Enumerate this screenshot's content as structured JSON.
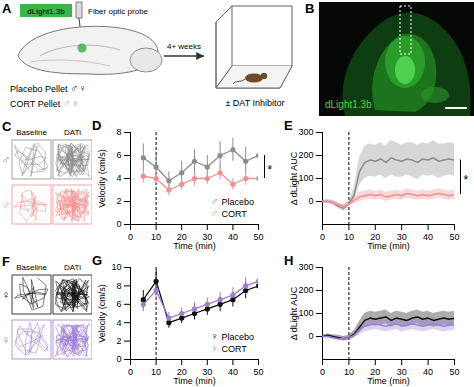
{
  "schematic": {
    "panel": "A",
    "sensor": "dLight1.3b",
    "probe": "Fiber optic probe",
    "groups": [
      {
        "text": "Placebo Pellet",
        "symbols": [
          {
            "symbol": "♂",
            "color": "#111111"
          },
          {
            "symbol": "♀",
            "color": "#111111"
          }
        ]
      },
      {
        "text": "CORT Pellet",
        "symbols": [
          {
            "symbol": "♂",
            "color": "#f08f8f"
          },
          {
            "symbol": "♀",
            "color": "#9c7fd4"
          }
        ]
      }
    ],
    "interval": "4+ weeks",
    "treatment": "± DAT Inhibitor"
  },
  "histology": {
    "panel": "B",
    "label": "dLight1.3b"
  },
  "tracking": [
    {
      "panel": "C",
      "columns": [
        "Baseline",
        "DATi"
      ],
      "rows": [
        {
          "symbol": "♂",
          "color": "#8c8c8c"
        },
        {
          "symbol": "♂",
          "color": "#f08f8f"
        }
      ]
    },
    {
      "panel": "F",
      "columns": [
        "Baseline",
        "DATi"
      ],
      "rows": [
        {
          "symbol": "♀",
          "color": "#111111"
        },
        {
          "symbol": "♀",
          "color": "#9c7fd4"
        }
      ]
    }
  ],
  "chart_data": [
    {
      "panel": "D",
      "type": "line",
      "marker": "circle",
      "x_label": "Time (min)",
      "y_label": "Velocity (cm/s)",
      "x": [
        5,
        10,
        15,
        20,
        25,
        30,
        35,
        40,
        45,
        50
      ],
      "xlim": [
        0,
        50
      ],
      "xticks": [
        0,
        10,
        20,
        30,
        40,
        50
      ],
      "ylim": [
        0,
        8
      ],
      "yticks": [
        0,
        2,
        4,
        6,
        8
      ],
      "event_x": 10,
      "legend": "bottom-right",
      "legend_symbol": "♂",
      "significance": "*",
      "series": [
        {
          "name": "Placebo",
          "color": "#8c8c8c",
          "values": [
            5.8,
            5.0,
            3.8,
            4.5,
            5.5,
            5.0,
            6.0,
            6.5,
            5.5,
            6.0
          ],
          "error": [
            1.2,
            1.0,
            0.8,
            1.0,
            1.0,
            1.0,
            1.2,
            1.0,
            1.2,
            1.0
          ]
        },
        {
          "name": "CORT",
          "color": "#f08f8f",
          "values": [
            4.2,
            4.0,
            3.0,
            3.5,
            4.0,
            4.0,
            4.5,
            3.5,
            4.0,
            4.0
          ],
          "error": [
            0.6,
            0.5,
            0.5,
            0.5,
            0.6,
            0.5,
            0.6,
            0.5,
            0.6,
            0.5
          ]
        }
      ]
    },
    {
      "panel": "E",
      "type": "line",
      "marker": "none",
      "x_label": "Time (min)",
      "y_label": "Δ dLight AUC",
      "x": [
        0,
        2,
        4,
        6,
        8,
        10,
        12,
        14,
        16,
        18,
        20,
        22,
        24,
        26,
        28,
        30,
        32,
        34,
        36,
        38,
        40,
        42,
        44,
        46,
        48,
        50
      ],
      "xlim": [
        0,
        50
      ],
      "xticks": [
        0,
        10,
        20,
        30,
        40,
        50
      ],
      "ylim": [
        -100,
        300
      ],
      "yticks": [
        0,
        100,
        200,
        300
      ],
      "event_x": 10,
      "significance": "*",
      "series": [
        {
          "name": "Placebo",
          "color": "#8c8c8c",
          "values": [
            0,
            0,
            -5,
            -20,
            -30,
            -10,
            30,
            130,
            170,
            180,
            175,
            185,
            170,
            190,
            180,
            175,
            185,
            180,
            170,
            185,
            180,
            190,
            175,
            180,
            185,
            180
          ],
          "error": [
            5,
            8,
            10,
            12,
            15,
            12,
            30,
            60,
            70,
            70,
            70,
            70,
            70,
            75,
            75,
            70,
            70,
            75,
            75,
            70,
            70,
            75,
            75,
            70,
            70,
            70
          ]
        },
        {
          "name": "CORT",
          "color": "#f08f8f",
          "values": [
            0,
            0,
            -5,
            -15,
            -25,
            -10,
            5,
            20,
            25,
            30,
            25,
            30,
            20,
            25,
            30,
            25,
            35,
            30,
            25,
            30,
            25,
            30,
            35,
            30,
            25,
            30
          ],
          "error": [
            5,
            6,
            8,
            10,
            12,
            10,
            15,
            20,
            20,
            20,
            20,
            20,
            20,
            20,
            20,
            20,
            20,
            20,
            20,
            20,
            20,
            20,
            20,
            20,
            20,
            20
          ]
        }
      ]
    },
    {
      "panel": "G",
      "type": "line",
      "marker": "circle",
      "x_label": "Time (min)",
      "y_label": "Velocity (cm/s)",
      "x": [
        5,
        10,
        15,
        20,
        25,
        30,
        35,
        40,
        45,
        50
      ],
      "xlim": [
        0,
        50
      ],
      "xticks": [
        0,
        10,
        20,
        30,
        40,
        50
      ],
      "ylim": [
        0,
        10
      ],
      "yticks": [
        0,
        2,
        4,
        6,
        8,
        10
      ],
      "event_x": 10,
      "legend": "bottom-right",
      "legend_symbol": "♀",
      "series": [
        {
          "name": "Placebo",
          "color": "#111111",
          "values": [
            6.5,
            8.5,
            4.0,
            4.5,
            5.0,
            5.5,
            6.0,
            6.5,
            7.5,
            8.0
          ],
          "error": [
            1.0,
            1.2,
            0.6,
            0.6,
            0.7,
            0.7,
            0.8,
            0.8,
            0.9,
            1.0
          ]
        },
        {
          "name": "CORT",
          "color": "#9c7fd4",
          "values": [
            6.0,
            7.5,
            4.5,
            5.0,
            5.5,
            6.0,
            6.5,
            7.0,
            8.0,
            8.5
          ],
          "error": [
            0.8,
            1.0,
            0.6,
            0.6,
            0.7,
            0.7,
            0.8,
            0.8,
            0.9,
            0.9
          ]
        }
      ]
    },
    {
      "panel": "H",
      "type": "line",
      "marker": "none",
      "x_label": "Time (min)",
      "y_label": "Δ dLight AUC",
      "x": [
        0,
        2,
        4,
        6,
        8,
        10,
        12,
        14,
        16,
        18,
        20,
        22,
        24,
        26,
        28,
        30,
        32,
        34,
        36,
        38,
        40,
        42,
        44,
        46,
        48,
        50
      ],
      "xlim": [
        0,
        50
      ],
      "xticks": [
        0,
        10,
        20,
        30,
        40,
        50
      ],
      "ylim": [
        -100,
        300
      ],
      "yticks": [
        0,
        100,
        200,
        300
      ],
      "event_x": 10,
      "series": [
        {
          "name": "Placebo",
          "color": "#111111",
          "values": [
            0,
            5,
            0,
            -5,
            -10,
            -5,
            10,
            40,
            70,
            80,
            75,
            80,
            85,
            70,
            80,
            75,
            70,
            80,
            85,
            75,
            80,
            70,
            75,
            80,
            75,
            80
          ],
          "error": [
            5,
            6,
            8,
            10,
            10,
            10,
            15,
            25,
            30,
            30,
            30,
            30,
            30,
            30,
            30,
            30,
            30,
            30,
            30,
            30,
            30,
            30,
            30,
            30,
            30,
            30
          ]
        },
        {
          "name": "CORT",
          "color": "#9c7fd4",
          "values": [
            0,
            0,
            -5,
            -10,
            -10,
            -5,
            5,
            30,
            45,
            50,
            55,
            50,
            45,
            50,
            55,
            45,
            50,
            55,
            50,
            45,
            50,
            55,
            50,
            45,
            50,
            50
          ],
          "error": [
            5,
            6,
            8,
            8,
            10,
            8,
            12,
            20,
            25,
            25,
            25,
            25,
            25,
            25,
            25,
            25,
            25,
            25,
            25,
            25,
            25,
            25,
            25,
            25,
            25,
            25
          ]
        }
      ]
    }
  ]
}
